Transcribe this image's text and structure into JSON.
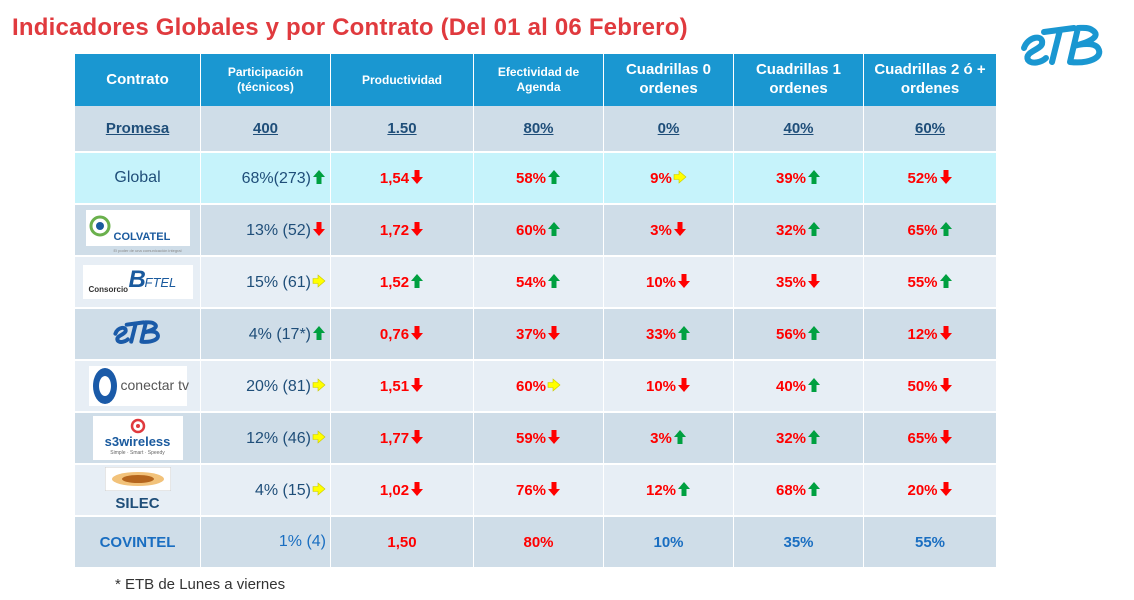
{
  "title": "Indicadores Globales y por Contrato (Del 01 al 06 Febrero)",
  "brand_logo_text": "eTB",
  "colors": {
    "title": "#e03a3e",
    "header_bg": "#1a97d1",
    "arrow_up": "#00a040",
    "arrow_down": "#ff0000",
    "arrow_right": "#ffff00",
    "text_blue": "#1f4e79",
    "text_red": "#ff0000"
  },
  "headers": [
    "Contrato",
    "Participación (técnicos)",
    "Productividad",
    "Efectividad de Agenda",
    "Cuadrillas 0 ordenes",
    "Cuadrillas 1 ordenes",
    "Cuadrillas 2 ó + ordenes"
  ],
  "promesa": {
    "label": "Promesa",
    "values": [
      "400",
      "1.50",
      "80%",
      "0%",
      "40%",
      "60%"
    ]
  },
  "rows": [
    {
      "name": "Global",
      "logo": "none",
      "cells": [
        {
          "text": "68%(273)",
          "arrow": "up"
        },
        {
          "text": "1,54",
          "arrow": "down"
        },
        {
          "text": "58%",
          "arrow": "up"
        },
        {
          "text": "9%",
          "arrow": "right"
        },
        {
          "text": "39%",
          "arrow": "up"
        },
        {
          "text": "52%",
          "arrow": "down"
        }
      ]
    },
    {
      "name": "COLVATEL",
      "tagline": "El poder de una comunicación integral",
      "logo": "colvatel-logo",
      "cells": [
        {
          "text": "13% (52)",
          "arrow": "down"
        },
        {
          "text": "1,72",
          "arrow": "down"
        },
        {
          "text": "60%",
          "arrow": "up"
        },
        {
          "text": "3%",
          "arrow": "down"
        },
        {
          "text": "32%",
          "arrow": "up"
        },
        {
          "text": "65%",
          "arrow": "up"
        }
      ]
    },
    {
      "name": "Consorcio BFTEL",
      "logo_prefix": "Consorcio",
      "logo_main": "FTEL",
      "logo_initial": "B",
      "logo": "bftel-logo",
      "cells": [
        {
          "text": "15% (61)",
          "arrow": "right"
        },
        {
          "text": "1,52",
          "arrow": "up"
        },
        {
          "text": "54%",
          "arrow": "up"
        },
        {
          "text": "10%",
          "arrow": "down"
        },
        {
          "text": "35%",
          "arrow": "down"
        },
        {
          "text": "55%",
          "arrow": "up"
        }
      ]
    },
    {
      "name": "eTB",
      "logo": "etb-logo",
      "cells": [
        {
          "text": "4% (17*)",
          "arrow": "up"
        },
        {
          "text": "0,76",
          "arrow": "down"
        },
        {
          "text": "37%",
          "arrow": "down"
        },
        {
          "text": "33%",
          "arrow": "up"
        },
        {
          "text": "56%",
          "arrow": "up"
        },
        {
          "text": "12%",
          "arrow": "down"
        }
      ]
    },
    {
      "name": "conectar tv",
      "logo": "conectar-tv-logo",
      "cells": [
        {
          "text": "20% (81)",
          "arrow": "right"
        },
        {
          "text": "1,51",
          "arrow": "down"
        },
        {
          "text": "60%",
          "arrow": "right"
        },
        {
          "text": "10%",
          "arrow": "down"
        },
        {
          "text": "40%",
          "arrow": "up"
        },
        {
          "text": "50%",
          "arrow": "down"
        }
      ]
    },
    {
      "name": "s3wireless",
      "logo_text": "s3wireless",
      "logo_tagline": "Simple · Smart · Speedy",
      "logo": "s3wireless-logo",
      "cells": [
        {
          "text": "12% (46)",
          "arrow": "right"
        },
        {
          "text": "1,77",
          "arrow": "down"
        },
        {
          "text": "59%",
          "arrow": "down"
        },
        {
          "text": "3%",
          "arrow": "up"
        },
        {
          "text": "32%",
          "arrow": "up"
        },
        {
          "text": "65%",
          "arrow": "down"
        }
      ]
    },
    {
      "name": "SILEC",
      "logo": "silec-logo",
      "cells": [
        {
          "text": "4% (15)",
          "arrow": "right"
        },
        {
          "text": "1,02",
          "arrow": "down"
        },
        {
          "text": "76%",
          "arrow": "down"
        },
        {
          "text": "12%",
          "arrow": "up"
        },
        {
          "text": "68%",
          "arrow": "up"
        },
        {
          "text": "20%",
          "arrow": "down"
        }
      ]
    },
    {
      "name": "COVINTEL",
      "logo": "none",
      "cells": [
        {
          "text": "1% (4)",
          "arrow": "none"
        },
        {
          "text": "1,50",
          "arrow": "none"
        },
        {
          "text": "80%",
          "arrow": "none"
        },
        {
          "text": "10%",
          "arrow": "none"
        },
        {
          "text": "35%",
          "arrow": "none"
        },
        {
          "text": "55%",
          "arrow": "none"
        }
      ]
    }
  ],
  "footnote": "* ETB de Lunes a viernes"
}
